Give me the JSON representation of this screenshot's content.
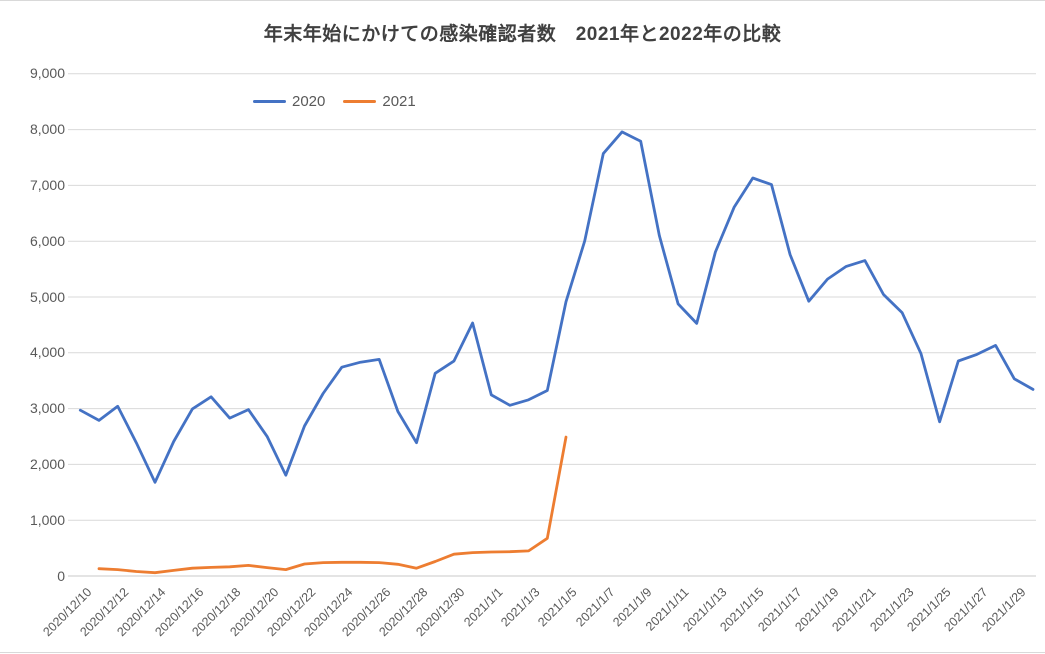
{
  "title": "年末年始にかけての感染確認者数　2021年と2022年の比較",
  "legend": [
    {
      "label": "2020",
      "color": "#4472C4"
    },
    {
      "label": "2021",
      "color": "#ED7D31"
    }
  ],
  "colors": {
    "series_2020": "#4472C4",
    "series_2021": "#ED7D31",
    "gridline": "#d9d9d9",
    "axis_line": "#c9c9c9",
    "tick_text": "#595959",
    "title_text": "#404040",
    "background": "#ffffff"
  },
  "chart_data": {
    "type": "line",
    "title": "年末年始にかけての感染確認者数　2021年と2022年の比較",
    "xlabel": "",
    "ylabel": "",
    "ylim": [
      0,
      9000
    ],
    "grid": "horizontal",
    "legend_position": "top-inside-left",
    "x_label_rotation": -45,
    "x_tick_every": 2,
    "x_dates": [
      "2020/12/10",
      "2020/12/11",
      "2020/12/12",
      "2020/12/13",
      "2020/12/14",
      "2020/12/15",
      "2020/12/16",
      "2020/12/17",
      "2020/12/18",
      "2020/12/19",
      "2020/12/20",
      "2020/12/21",
      "2020/12/22",
      "2020/12/23",
      "2020/12/24",
      "2020/12/25",
      "2020/12/26",
      "2020/12/27",
      "2020/12/28",
      "2020/12/29",
      "2020/12/30",
      "2020/12/31",
      "2021/1/1",
      "2021/1/2",
      "2021/1/3",
      "2021/1/4",
      "2021/1/5",
      "2021/1/6",
      "2021/1/7",
      "2021/1/8",
      "2021/1/9",
      "2021/1/10",
      "2021/1/11",
      "2021/1/12",
      "2021/1/13",
      "2021/1/14",
      "2021/1/15",
      "2021/1/16",
      "2021/1/17",
      "2021/1/18",
      "2021/1/19",
      "2021/1/20",
      "2021/1/21",
      "2021/1/22",
      "2021/1/23",
      "2021/1/24",
      "2021/1/25",
      "2021/1/26",
      "2021/1/27",
      "2021/1/28",
      "2021/1/29",
      "2021/1/30"
    ],
    "x_tick_labels": [
      "2020/12/10",
      "2020/12/12",
      "2020/12/14",
      "2020/12/16",
      "2020/12/18",
      "2020/12/20",
      "2020/12/22",
      "2020/12/24",
      "2020/12/26",
      "2020/12/28",
      "2020/12/30",
      "2021/1/1",
      "2021/1/3",
      "2021/1/5",
      "2021/1/7",
      "2021/1/9",
      "2021/1/11",
      "2021/1/13",
      "2021/1/15",
      "2021/1/17",
      "2021/1/19",
      "2021/1/21",
      "2021/1/23",
      "2021/1/25",
      "2021/1/27",
      "2021/1/29"
    ],
    "y_ticks": [
      0,
      1000,
      2000,
      3000,
      4000,
      5000,
      6000,
      7000,
      8000,
      9000
    ],
    "y_tick_labels": [
      "0",
      "1,000",
      "2,000",
      "3,000",
      "4,000",
      "5,000",
      "6,000",
      "7,000",
      "8,000",
      "9,000"
    ],
    "series": [
      {
        "name": "2020",
        "color": "#4472C4",
        "start_index": 0,
        "values": [
          2971,
          2788,
          3041,
          2388,
          1680,
          2410,
          2994,
          3211,
          2829,
          2982,
          2502,
          1806,
          2688,
          3271,
          3742,
          3832,
          3881,
          2948,
          2389,
          3633,
          3852,
          4534,
          3246,
          3059,
          3158,
          3325,
          4915,
          6004,
          7570,
          7958,
          7790,
          6097,
          4876,
          4527,
          5807,
          6607,
          7133,
          7014,
          5759,
          4925,
          5320,
          5549,
          5653,
          5045,
          4717,
          3990,
          2764,
          3853,
          3971,
          4133,
          3534,
          3344
        ]
      },
      {
        "name": "2021",
        "color": "#ED7D31",
        "start_index": 1,
        "values": [
          130,
          115,
          80,
          60,
          100,
          140,
          155,
          165,
          190,
          150,
          115,
          215,
          240,
          245,
          245,
          240,
          210,
          140,
          260,
          390,
          420,
          430,
          435,
          450,
          675,
          2490
        ]
      }
    ]
  }
}
